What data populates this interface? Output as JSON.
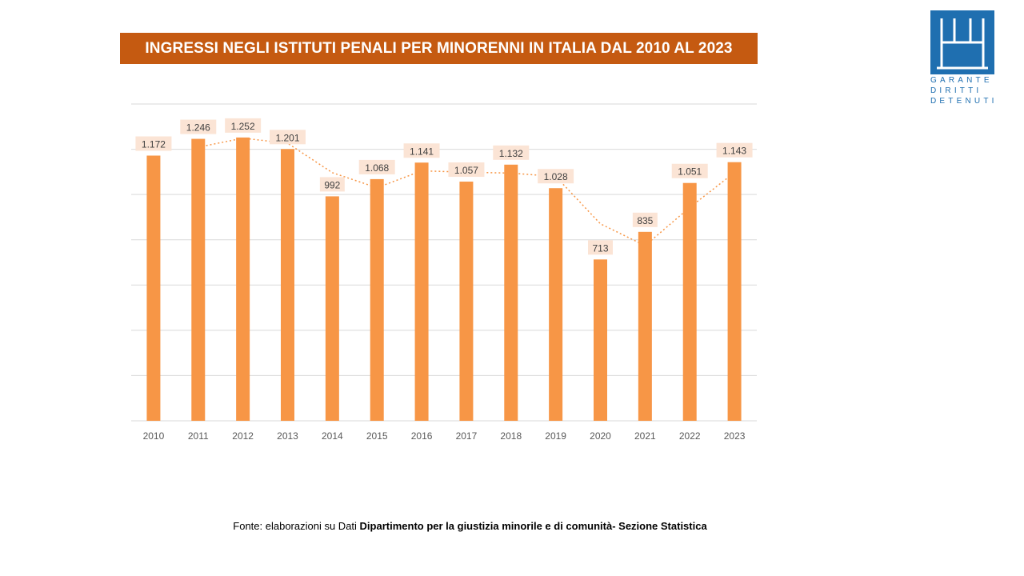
{
  "title": "INGRESSI NEGLI ISTITUTI PENALI PER MINORENNI IN ITALIA DAL 2010 AL 2023",
  "logo": {
    "icon": "garante-logo-icon",
    "lines": [
      "GARANTE",
      "DIRITTI",
      "DETENUTI"
    ],
    "color": "#1f6fb0"
  },
  "source": {
    "prefix": "Fonte: elaborazioni su Dati ",
    "bold": "Dipartimento per la giustizia minorile e di comunità- Sezione Statistica"
  },
  "chart_data": {
    "type": "bar",
    "categories": [
      "2010",
      "2011",
      "2012",
      "2013",
      "2014",
      "2015",
      "2016",
      "2017",
      "2018",
      "2019",
      "2020",
      "2021",
      "2022",
      "2023"
    ],
    "values": [
      1172,
      1246,
      1252,
      1201,
      992,
      1068,
      1141,
      1057,
      1132,
      1028,
      713,
      835,
      1051,
      1143
    ],
    "data_labels": [
      "1.172",
      "1.246",
      "1.252",
      "1.201",
      "992",
      "1.068",
      "1.141",
      "1.057",
      "1.132",
      "1.028",
      "713",
      "835",
      "1.051",
      "1.143"
    ],
    "trendline": "moving-average",
    "ylim": [
      0,
      1400
    ],
    "grid": true,
    "colors": {
      "bar": "#f79646",
      "label_bg": "#fbe4d5",
      "trend": "#f79646",
      "grid": "#d9d9d9"
    }
  }
}
